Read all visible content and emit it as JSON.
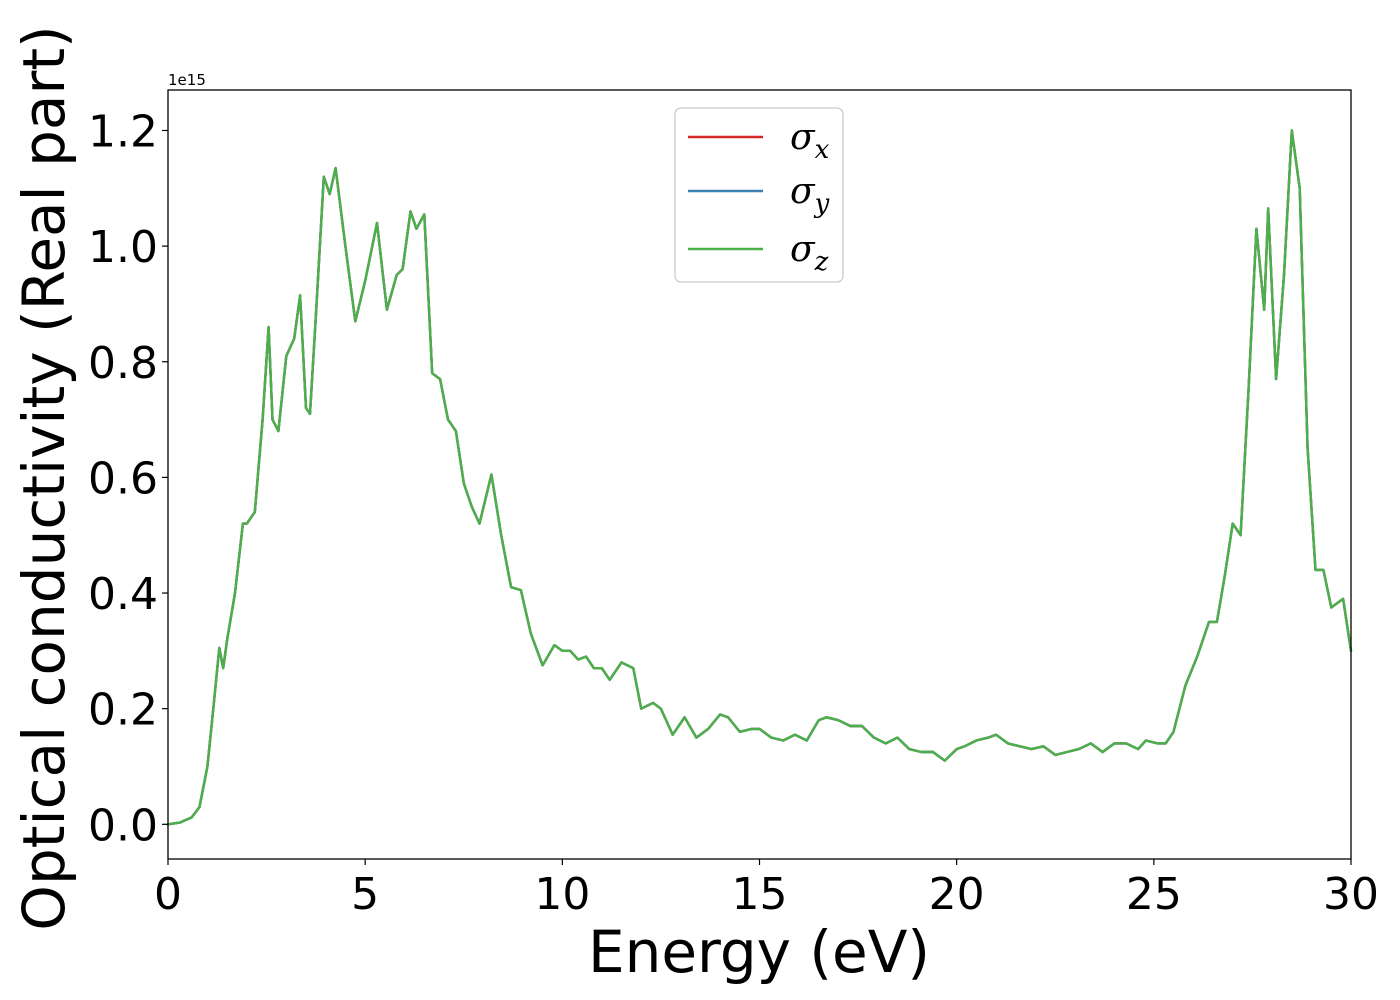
{
  "chart_data": {
    "type": "line",
    "title": "",
    "xlabel": "Energy (eV)",
    "ylabel": "Optical conductivity (Real part)",
    "y_offset_label": "1e15",
    "xlim": [
      0,
      30
    ],
    "ylim": [
      -0.06,
      1.27
    ],
    "xticks": [
      0,
      5,
      10,
      15,
      20,
      25,
      30
    ],
    "xtick_labels": [
      "0",
      "5",
      "10",
      "15",
      "20",
      "25",
      "30"
    ],
    "yticks": [
      0.0,
      0.2,
      0.4,
      0.6,
      0.8,
      1.0,
      1.2
    ],
    "ytick_labels": [
      "0.0",
      "0.2",
      "0.4",
      "0.6",
      "0.8",
      "1.0",
      "1.2"
    ],
    "grid": false,
    "legend_position": "top-center",
    "x": [
      0,
      0.3,
      0.6,
      0.8,
      1.0,
      1.15,
      1.3,
      1.4,
      1.5,
      1.7,
      1.9,
      2.0,
      2.2,
      2.4,
      2.55,
      2.65,
      2.8,
      3.0,
      3.2,
      3.35,
      3.5,
      3.6,
      3.75,
      3.95,
      4.1,
      4.25,
      4.5,
      4.75,
      5.0,
      5.3,
      5.55,
      5.8,
      5.95,
      6.15,
      6.3,
      6.5,
      6.7,
      6.9,
      7.1,
      7.3,
      7.5,
      7.7,
      7.9,
      8.2,
      8.45,
      8.7,
      8.95,
      9.2,
      9.5,
      9.8,
      10.0,
      10.2,
      10.4,
      10.6,
      10.8,
      11.0,
      11.2,
      11.5,
      11.8,
      12.0,
      12.3,
      12.5,
      12.8,
      13.1,
      13.4,
      13.7,
      14.0,
      14.2,
      14.5,
      14.8,
      15.0,
      15.3,
      15.6,
      15.9,
      16.2,
      16.5,
      16.7,
      17.0,
      17.3,
      17.6,
      17.9,
      18.2,
      18.5,
      18.8,
      19.1,
      19.4,
      19.7,
      20.0,
      20.2,
      20.5,
      20.8,
      21.0,
      21.3,
      21.6,
      21.9,
      22.2,
      22.5,
      22.8,
      23.1,
      23.4,
      23.7,
      24.0,
      24.3,
      24.6,
      24.8,
      25.1,
      25.3,
      25.5,
      25.8,
      26.1,
      26.4,
      26.6,
      26.8,
      27.0,
      27.2,
      27.4,
      27.6,
      27.8,
      27.9,
      28.1,
      28.3,
      28.5,
      28.7,
      28.9,
      29.1,
      29.3,
      29.5,
      29.8,
      30.0
    ],
    "series": [
      {
        "name": "σx",
        "color": "#d62728",
        "y": [
          0.0,
          0.003,
          0.012,
          0.03,
          0.1,
          0.2,
          0.305,
          0.27,
          0.32,
          0.4,
          0.52,
          0.52,
          0.54,
          0.7,
          0.86,
          0.7,
          0.68,
          0.81,
          0.84,
          0.915,
          0.72,
          0.71,
          0.88,
          1.12,
          1.09,
          1.135,
          1.0,
          0.87,
          0.94,
          1.04,
          0.89,
          0.95,
          0.96,
          1.06,
          1.03,
          1.055,
          0.78,
          0.77,
          0.7,
          0.68,
          0.59,
          0.55,
          0.52,
          0.605,
          0.5,
          0.41,
          0.405,
          0.33,
          0.275,
          0.31,
          0.3,
          0.3,
          0.285,
          0.29,
          0.27,
          0.27,
          0.25,
          0.28,
          0.27,
          0.2,
          0.21,
          0.2,
          0.155,
          0.185,
          0.15,
          0.165,
          0.19,
          0.185,
          0.16,
          0.165,
          0.165,
          0.15,
          0.145,
          0.155,
          0.145,
          0.18,
          0.185,
          0.18,
          0.17,
          0.17,
          0.15,
          0.14,
          0.15,
          0.13,
          0.125,
          0.125,
          0.11,
          0.13,
          0.135,
          0.145,
          0.15,
          0.155,
          0.14,
          0.135,
          0.13,
          0.135,
          0.12,
          0.125,
          0.13,
          0.14,
          0.125,
          0.14,
          0.14,
          0.13,
          0.145,
          0.14,
          0.14,
          0.16,
          0.24,
          0.29,
          0.35,
          0.35,
          0.43,
          0.52,
          0.5,
          0.75,
          1.03,
          0.89,
          1.065,
          0.77,
          0.95,
          1.2,
          1.1,
          0.65,
          0.44,
          0.44,
          0.375,
          0.39,
          0.3
        ]
      },
      {
        "name": "σy",
        "color": "#3a80b4",
        "y": [
          0.0,
          0.003,
          0.012,
          0.03,
          0.1,
          0.2,
          0.305,
          0.27,
          0.32,
          0.4,
          0.52,
          0.52,
          0.54,
          0.7,
          0.86,
          0.7,
          0.68,
          0.81,
          0.84,
          0.915,
          0.72,
          0.71,
          0.88,
          1.12,
          1.09,
          1.135,
          1.0,
          0.87,
          0.94,
          1.04,
          0.89,
          0.95,
          0.96,
          1.06,
          1.03,
          1.055,
          0.78,
          0.77,
          0.7,
          0.68,
          0.59,
          0.55,
          0.52,
          0.605,
          0.5,
          0.41,
          0.405,
          0.33,
          0.275,
          0.31,
          0.3,
          0.3,
          0.285,
          0.29,
          0.27,
          0.27,
          0.25,
          0.28,
          0.27,
          0.2,
          0.21,
          0.2,
          0.155,
          0.185,
          0.15,
          0.165,
          0.19,
          0.185,
          0.16,
          0.165,
          0.165,
          0.15,
          0.145,
          0.155,
          0.145,
          0.18,
          0.185,
          0.18,
          0.17,
          0.17,
          0.15,
          0.14,
          0.15,
          0.13,
          0.125,
          0.125,
          0.11,
          0.13,
          0.135,
          0.145,
          0.15,
          0.155,
          0.14,
          0.135,
          0.13,
          0.135,
          0.12,
          0.125,
          0.13,
          0.14,
          0.125,
          0.14,
          0.14,
          0.13,
          0.145,
          0.14,
          0.14,
          0.16,
          0.24,
          0.29,
          0.35,
          0.35,
          0.43,
          0.52,
          0.5,
          0.75,
          1.03,
          0.89,
          1.065,
          0.77,
          0.95,
          1.2,
          1.1,
          0.65,
          0.44,
          0.44,
          0.375,
          0.39,
          0.3
        ]
      },
      {
        "name": "σz",
        "color": "#4daf4a",
        "y": [
          0.0,
          0.003,
          0.012,
          0.03,
          0.1,
          0.2,
          0.305,
          0.27,
          0.32,
          0.4,
          0.52,
          0.52,
          0.54,
          0.7,
          0.86,
          0.7,
          0.68,
          0.81,
          0.84,
          0.915,
          0.72,
          0.71,
          0.88,
          1.12,
          1.09,
          1.135,
          1.0,
          0.87,
          0.94,
          1.04,
          0.89,
          0.95,
          0.96,
          1.06,
          1.03,
          1.055,
          0.78,
          0.77,
          0.7,
          0.68,
          0.59,
          0.55,
          0.52,
          0.605,
          0.5,
          0.41,
          0.405,
          0.33,
          0.275,
          0.31,
          0.3,
          0.3,
          0.285,
          0.29,
          0.27,
          0.27,
          0.25,
          0.28,
          0.27,
          0.2,
          0.21,
          0.2,
          0.155,
          0.185,
          0.15,
          0.165,
          0.19,
          0.185,
          0.16,
          0.165,
          0.165,
          0.15,
          0.145,
          0.155,
          0.145,
          0.18,
          0.185,
          0.18,
          0.17,
          0.17,
          0.15,
          0.14,
          0.15,
          0.13,
          0.125,
          0.125,
          0.11,
          0.13,
          0.135,
          0.145,
          0.15,
          0.155,
          0.14,
          0.135,
          0.13,
          0.135,
          0.12,
          0.125,
          0.13,
          0.14,
          0.125,
          0.14,
          0.14,
          0.13,
          0.145,
          0.14,
          0.14,
          0.16,
          0.24,
          0.29,
          0.35,
          0.35,
          0.43,
          0.52,
          0.5,
          0.75,
          1.03,
          0.89,
          1.065,
          0.77,
          0.95,
          1.2,
          1.1,
          0.65,
          0.44,
          0.44,
          0.375,
          0.39,
          0.3
        ]
      }
    ],
    "legend": [
      {
        "symbol": "σ",
        "subscript": "x",
        "color": "#d62728"
      },
      {
        "symbol": "σ",
        "subscript": "y",
        "color": "#3a80b4"
      },
      {
        "symbol": "σ",
        "subscript": "z",
        "color": "#4daf4a"
      }
    ]
  }
}
